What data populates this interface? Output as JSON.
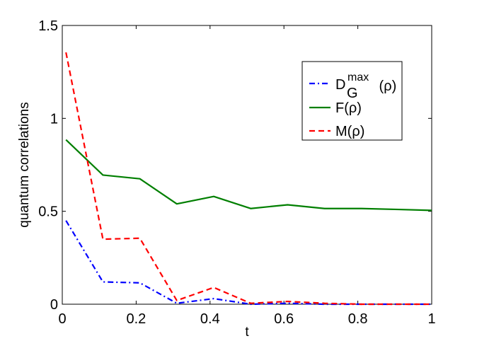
{
  "chart_data": {
    "type": "line",
    "xlabel": "t",
    "ylabel": "quantum correlations",
    "xlim": [
      0,
      1
    ],
    "ylim": [
      0,
      1.5
    ],
    "xticks": [
      "0",
      "0.2",
      "0.4",
      "0.6",
      "0.8",
      "1"
    ],
    "yticks": [
      "0",
      "0.5",
      "1",
      "1.5"
    ],
    "grid": false,
    "legend_position": "top-right",
    "x": [
      0.01,
      0.11,
      0.21,
      0.31,
      0.41,
      0.51,
      0.61,
      0.71,
      0.81,
      0.91,
      1.0
    ],
    "series": [
      {
        "name": "D_G^max (ρ)",
        "legend_main": "D",
        "legend_sub": "G",
        "legend_sup": "max",
        "legend_tail": " (ρ)",
        "color": "#0000ff",
        "style": "dashdot",
        "values": [
          0.45,
          0.12,
          0.115,
          0.005,
          0.03,
          0.0,
          0.005,
          0.0,
          0.0,
          0.0,
          0.0
        ]
      },
      {
        "name": "F(ρ)",
        "legend_main": "F(ρ)",
        "color": "#007f00",
        "style": "solid",
        "values": [
          0.885,
          0.695,
          0.675,
          0.54,
          0.58,
          0.515,
          0.535,
          0.515,
          0.515,
          0.51,
          0.505
        ]
      },
      {
        "name": "M(ρ)",
        "legend_main": "M(ρ)",
        "color": "#ff0000",
        "style": "dashed",
        "values": [
          1.355,
          0.35,
          0.355,
          0.02,
          0.09,
          0.005,
          0.015,
          0.005,
          0.0,
          0.0,
          0.0
        ]
      }
    ]
  }
}
